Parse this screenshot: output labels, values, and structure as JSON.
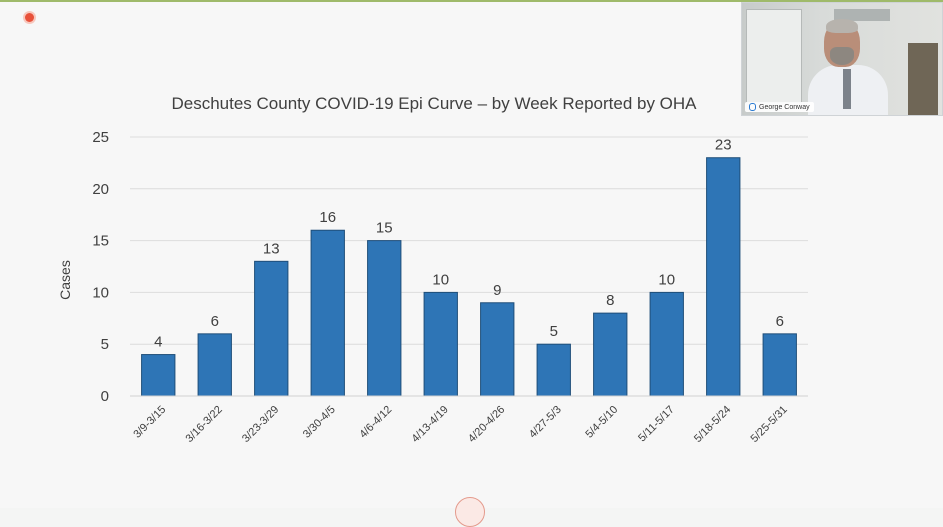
{
  "video": {
    "participant_name": "George Conway"
  },
  "chart_data": {
    "type": "bar",
    "title": "Deschutes County COVID-19 Epi Curve – by Week Reported by OHA",
    "xlabel": "",
    "ylabel": "Cases",
    "ylim": [
      0,
      25
    ],
    "yticks": [
      0,
      5,
      10,
      15,
      20,
      25
    ],
    "grid": true,
    "legend": "none",
    "bar_color": "#2e75b6",
    "categories": [
      "3/9-3/15",
      "3/16-3/22",
      "3/23-3/29",
      "3/30-4/5",
      "4/6-4/12",
      "4/13-4/19",
      "4/20-4/26",
      "4/27-5/3",
      "5/4-5/10",
      "5/11-5/17",
      "5/18-5/24",
      "5/25-5/31"
    ],
    "values": [
      4,
      6,
      13,
      16,
      15,
      10,
      9,
      5,
      8,
      10,
      23,
      6
    ]
  }
}
